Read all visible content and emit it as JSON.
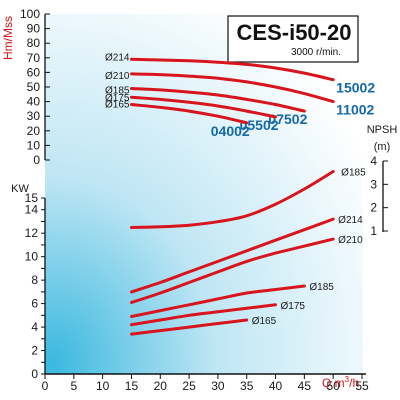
{
  "chart_data": {
    "type": "line",
    "title": "CES-i50-20",
    "subtitle": "3000 r/min.",
    "xlabel": "Q m³/h",
    "xlabel_main": "Q m",
    "xlabel_sup": "3",
    "xlabel_tail": "/h",
    "x_ticks": [
      "0",
      "5",
      "10",
      "15",
      "20",
      "25",
      "30",
      "35",
      "40",
      "45",
      "50",
      "55"
    ],
    "xlim": [
      0,
      55
    ],
    "head_axis": {
      "label": "Hm/Mss",
      "ticks": [
        "0",
        "10",
        "20",
        "30",
        "40",
        "50",
        "60",
        "70",
        "80",
        "90",
        "100"
      ],
      "ylim": [
        0,
        100
      ]
    },
    "power_axis": {
      "label": "KW",
      "ticks": [
        "0",
        "2",
        "4",
        "6",
        "8",
        "10",
        "12",
        "14",
        "15"
      ],
      "ylim": [
        0,
        15
      ]
    },
    "npsh_axis": {
      "label": "NPSH",
      "unit": "(m)",
      "ticks": [
        "1",
        "2",
        "3",
        "4"
      ],
      "ylim": [
        1,
        4
      ]
    },
    "head_series": [
      {
        "name": "Ø214",
        "model": "15002",
        "x": [
          15,
          20,
          25,
          30,
          35,
          40,
          45,
          50
        ],
        "y": [
          69,
          68.5,
          68,
          67,
          65.5,
          63,
          59.5,
          55
        ]
      },
      {
        "name": "Ø210",
        "model": "11002",
        "x": [
          15,
          20,
          25,
          30,
          35,
          40,
          45,
          50
        ],
        "y": [
          59,
          58.5,
          57.5,
          56,
          53.5,
          50,
          45.5,
          40
        ]
      },
      {
        "name": "Ø185",
        "model": "07502",
        "x": [
          15,
          20,
          25,
          30,
          35,
          40,
          45
        ],
        "y": [
          49,
          48,
          46.5,
          44.5,
          41.5,
          38,
          33.5
        ]
      },
      {
        "name": "Ø175",
        "model": "05502",
        "x": [
          15,
          20,
          25,
          30,
          35,
          40
        ],
        "y": [
          43,
          41.5,
          39.5,
          37,
          33.5,
          29.5
        ]
      },
      {
        "name": "Ø165",
        "model": "04002",
        "x": [
          15,
          20,
          25,
          30,
          35
        ],
        "y": [
          38,
          36,
          33.5,
          30,
          25.5
        ]
      }
    ],
    "npsh_series": [
      {
        "name": "Ø185",
        "x": [
          15,
          20,
          25,
          30,
          35,
          40,
          45,
          50
        ],
        "y": [
          1.15,
          1.18,
          1.25,
          1.4,
          1.65,
          2.15,
          2.8,
          3.55
        ]
      }
    ],
    "power_series": [
      {
        "name": "Ø214",
        "x": [
          15,
          20,
          25,
          30,
          35,
          40,
          45,
          50
        ],
        "y": [
          7.0,
          7.8,
          8.7,
          9.6,
          10.5,
          11.4,
          12.3,
          13.2
        ]
      },
      {
        "name": "Ø210",
        "x": [
          15,
          20,
          25,
          30,
          35,
          40,
          45,
          50
        ],
        "y": [
          6.1,
          6.9,
          7.8,
          8.7,
          9.6,
          10.3,
          10.9,
          11.5
        ]
      },
      {
        "name": "Ø185",
        "x": [
          15,
          20,
          25,
          30,
          35,
          40,
          45
        ],
        "y": [
          4.9,
          5.4,
          5.9,
          6.4,
          6.9,
          7.2,
          7.5
        ]
      },
      {
        "name": "Ø175",
        "x": [
          15,
          20,
          25,
          30,
          35,
          40
        ],
        "y": [
          4.2,
          4.6,
          5.0,
          5.3,
          5.6,
          5.9
        ]
      },
      {
        "name": "Ø165",
        "x": [
          15,
          20,
          25,
          30,
          35
        ],
        "y": [
          3.4,
          3.7,
          4.0,
          4.3,
          4.6
        ]
      }
    ],
    "grid": false,
    "colors": {
      "curve": "#d8141c",
      "model_label": "#1469a8",
      "bg_light": "#ffffff",
      "bg_dark": "#3ab8df"
    }
  }
}
